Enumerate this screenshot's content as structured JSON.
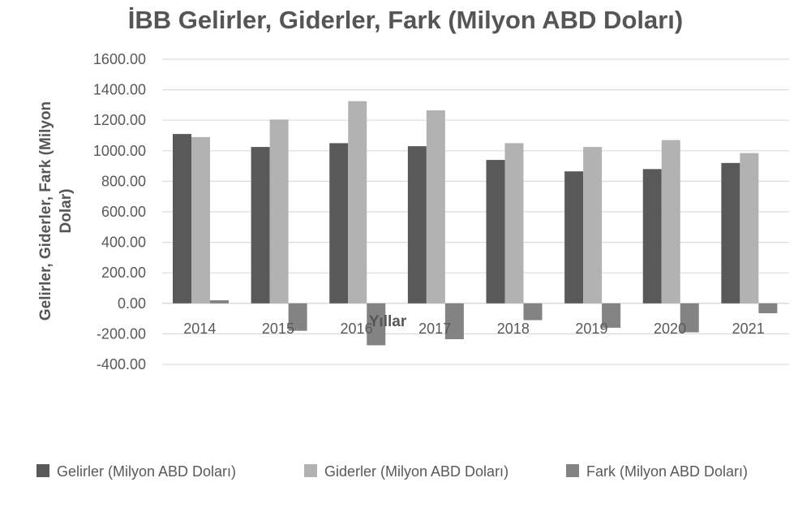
{
  "chart_data": {
    "type": "bar",
    "title": "İBB Gelirler, Giderler, Fark (Milyon ABD Doları)",
    "xlabel": "Yıllar",
    "ylabel": "Gelirler, Giderler, Fark (Milyon Dolar)",
    "categories": [
      "2014",
      "2015",
      "2016",
      "2017",
      "2018",
      "2019",
      "2020",
      "2021"
    ],
    "ylim": [
      -400,
      1600
    ],
    "yticks": [
      "1600.00",
      "1400.00",
      "1200.00",
      "1000.00",
      "800.00",
      "600.00",
      "400.00",
      "200.00",
      "0.00",
      "-200.00",
      "-400.00"
    ],
    "grid": true,
    "legend_position": "bottom",
    "series": [
      {
        "name": "Gelirler  (Milyon ABD Doları)",
        "color": "#595959",
        "values": [
          1110,
          1025,
          1050,
          1030,
          940,
          865,
          880,
          920
        ]
      },
      {
        "name": "Giderler (Milyon ABD Doları)",
        "color": "#b2b2b2",
        "values": [
          1090,
          1205,
          1325,
          1265,
          1050,
          1025,
          1070,
          985
        ]
      },
      {
        "name": "Fark (Milyon ABD Doları)",
        "color": "#838383",
        "values": [
          20,
          -180,
          -275,
          -235,
          -110,
          -160,
          -190,
          -65
        ]
      }
    ]
  }
}
